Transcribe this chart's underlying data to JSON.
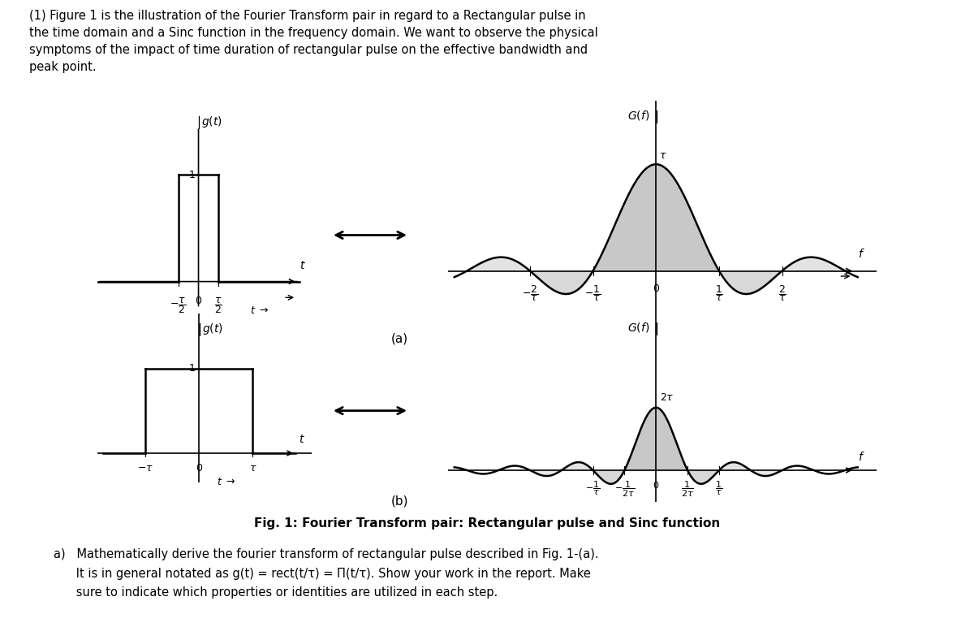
{
  "bg_color": "#ffffff",
  "text_color": "#000000",
  "header_text": "(1) Figure 1 is the illustration of the Fourier Transform pair in regard to a Rectangular pulse in\nthe time domain and a Sinc function in the frequency domain. We want to observe the physical\nsymptoms of the impact of time duration of rectangular pulse on the effective bandwidth and\npeak point.",
  "fig_caption": "Fig. 1: Fourier Transform pair: Rectangular pulse and Sinc function",
  "footer_line1": "a)   Mathematically derive the fourier transform of rectangular pulse described in Fig. 1-(a).",
  "footer_line2": "      It is in general notated as g(t) = rect(t/τ) = Π(t/τ). Show your work in the report. Make",
  "footer_line3": "      sure to indicate which properties or identities are utilized in each step.",
  "panel_label_a": "(a)",
  "panel_label_b": "(b)",
  "gray_fill": "#c8c8c8",
  "axis_lw": 1.2,
  "plot_lw": 1.8
}
